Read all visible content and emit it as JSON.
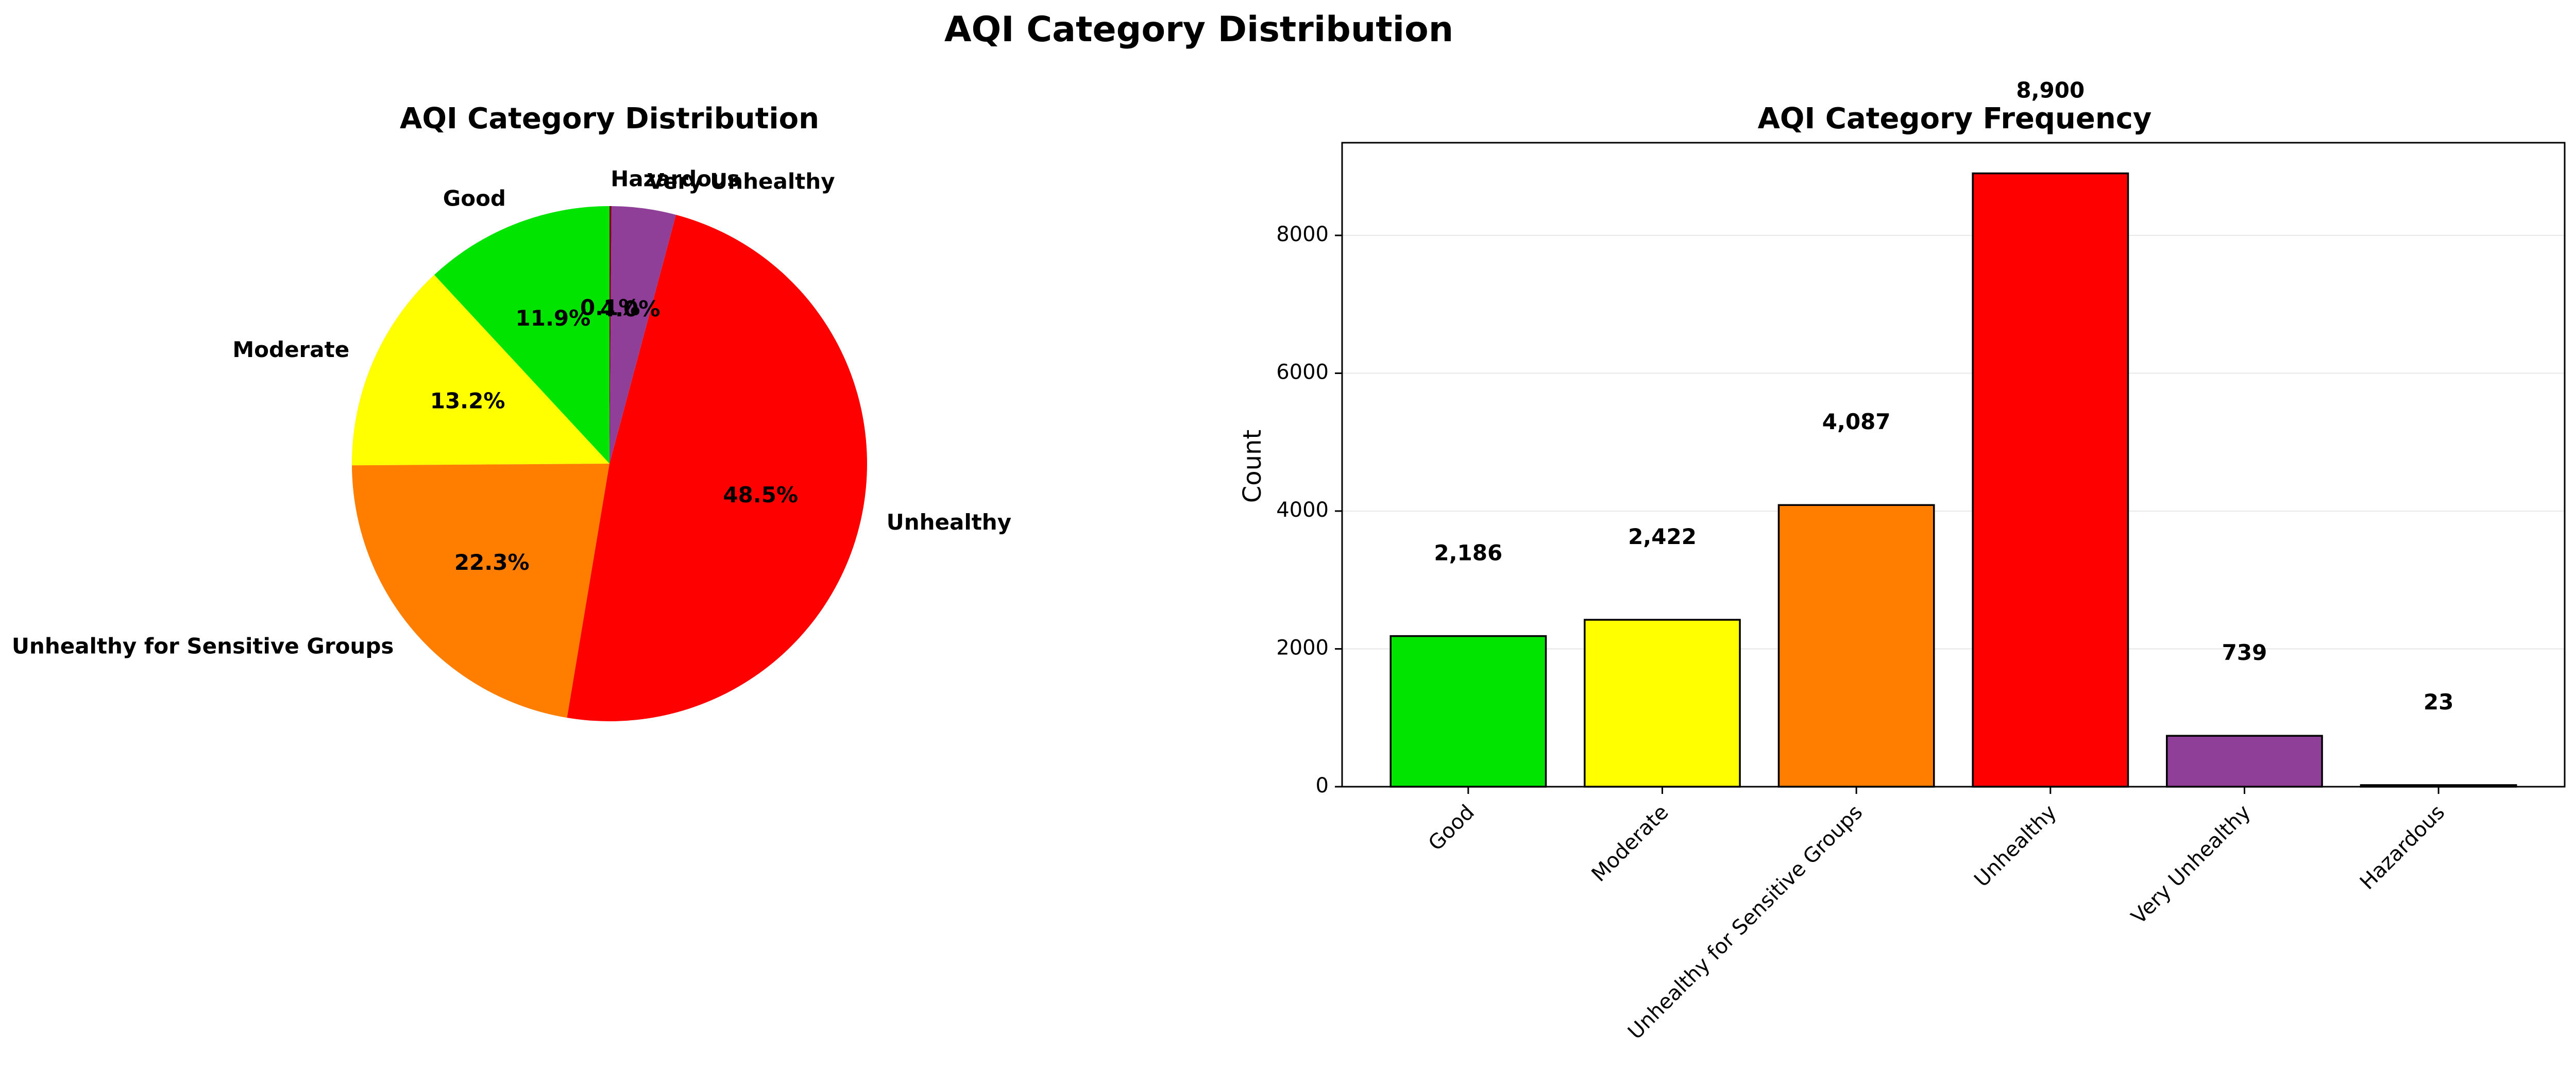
{
  "figure_title": "AQI Category Distribution",
  "chart_data": [
    {
      "type": "pie",
      "title": "AQI Category Distribution",
      "categories": [
        "Good",
        "Moderate",
        "Unhealthy for Sensitive Groups",
        "Unhealthy",
        "Very Unhealthy",
        "Hazardous"
      ],
      "values": [
        2186,
        2422,
        4087,
        8900,
        739,
        23
      ],
      "percent_labels": [
        "11.9%",
        "13.2%",
        "22.3%",
        "48.5%",
        "4.0%",
        "0.1%"
      ],
      "colors": [
        "#00e400",
        "#ffff00",
        "#ff7e00",
        "#ff0000",
        "#8f3f97",
        "#7e0023"
      ],
      "start_angle_deg": 90,
      "direction": "counterclockwise"
    },
    {
      "type": "bar",
      "title": "AQI Category Frequency",
      "categories": [
        "Good",
        "Moderate",
        "Unhealthy for Sensitive Groups",
        "Unhealthy",
        "Very Unhealthy",
        "Hazardous"
      ],
      "values": [
        2186,
        2422,
        4087,
        8900,
        739,
        23
      ],
      "value_labels": [
        "2,186",
        "2,422",
        "4,087",
        "8,900",
        "739",
        "23"
      ],
      "colors": [
        "#00e400",
        "#ffff00",
        "#ff7e00",
        "#ff0000",
        "#8f3f97",
        "#7e0023"
      ],
      "xlabel": "",
      "ylabel": "Count",
      "ylim": [
        0,
        9345
      ],
      "yticks": [
        0,
        2000,
        4000,
        6000,
        8000
      ],
      "grid": "y"
    }
  ]
}
